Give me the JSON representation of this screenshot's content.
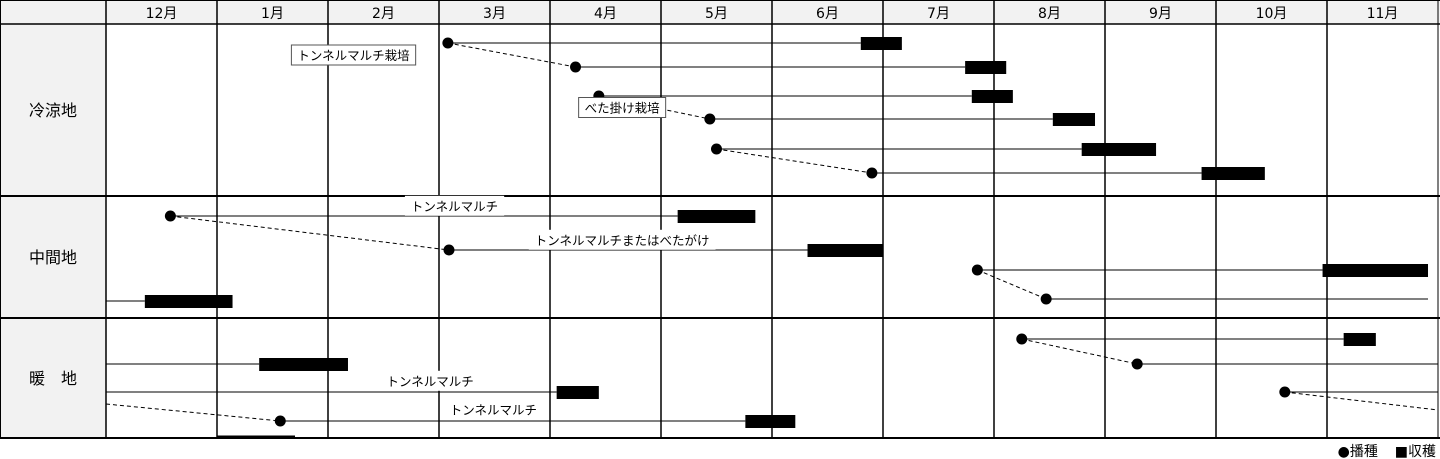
{
  "months": [
    "12月",
    "1月",
    "2月",
    "3月",
    "4月",
    "5月",
    "6月",
    "7月",
    "8月",
    "9月",
    "10月",
    "11月"
  ],
  "regions": [
    {
      "name": "冷涼地"
    },
    {
      "name": "中間地"
    },
    {
      "name": "暖　地"
    }
  ],
  "labels": [
    {
      "text": "トンネルマルチ栽培",
      "boxed": true,
      "region": 0,
      "month_center": 2.23,
      "lane": 0.5
    },
    {
      "text": "べた掛け栽培",
      "boxed": true,
      "region": 0,
      "month_center": 4.65,
      "lane": 2.5
    },
    {
      "text": "トンネルマルチ",
      "region": 1,
      "month_center": 3.14,
      "lane": -0.3
    },
    {
      "text": "トンネルマルチまたはべたがけ",
      "region": 1,
      "month_center": 4.65,
      "lane": 0.7
    },
    {
      "text": "トンネルマルチ",
      "region": 2,
      "month_center": 2.92,
      "lane": 1.6
    },
    {
      "text": "トンネルマルチ",
      "region": 2,
      "month_center": 3.49,
      "lane": 2.6
    }
  ],
  "schedules": [
    {
      "region": 0,
      "lane": 0,
      "sow": 3.08,
      "harvest": [
        6.8,
        7.17
      ],
      "link_next": true
    },
    {
      "region": 0,
      "lane": 1,
      "sow": 4.23,
      "harvest": [
        7.74,
        8.11
      ]
    },
    {
      "region": 0,
      "lane": 2,
      "sow": 4.44,
      "harvest": [
        7.8,
        8.17
      ],
      "link_next": true
    },
    {
      "region": 0,
      "lane": 3,
      "sow": 5.44,
      "harvest": [
        8.53,
        8.91
      ]
    },
    {
      "region": 0,
      "lane": 4,
      "sow": 5.5,
      "harvest": [
        8.79,
        9.46
      ],
      "link_next": true
    },
    {
      "region": 0,
      "lane": 5,
      "sow": 6.9,
      "harvest": [
        9.87,
        10.44
      ]
    },
    {
      "region": 1,
      "lane": 0,
      "sow": 0.58,
      "harvest": [
        5.15,
        5.85
      ],
      "link_next": true
    },
    {
      "region": 1,
      "lane": 1,
      "sow": 3.09,
      "harvest": [
        6.32,
        7.0
      ]
    },
    {
      "region": 1,
      "lane": 2,
      "sow": 7.85,
      "harvest": [
        10.96,
        11.91
      ],
      "link_next": true
    },
    {
      "region": 1,
      "lane": 3,
      "sow": 8.47,
      "line_to": 11.91
    },
    {
      "region": 1,
      "lane": 4,
      "line_from": 0,
      "harvest": [
        0.35,
        1.14
      ]
    },
    {
      "region": 2,
      "lane": 0,
      "sow": 8.25,
      "harvest": [
        11.15,
        11.44
      ],
      "link_next": true
    },
    {
      "region": 2,
      "lane": 1,
      "sow": 9.29,
      "line_to": 12
    },
    {
      "region": 2,
      "lane": 1,
      "line_from": 0,
      "harvest": [
        1.38,
        2.18
      ]
    },
    {
      "region": 2,
      "lane": 2,
      "line_from": 0,
      "harvest": [
        4.06,
        4.44
      ]
    },
    {
      "region": 2,
      "lane": 2,
      "sow": 10.62,
      "line_to": 12,
      "dash_to": 12
    },
    {
      "region": 2,
      "lane": 3,
      "dash_from": 0,
      "sow": 1.57,
      "harvest": [
        5.76,
        6.21
      ]
    }
  ],
  "legend": {
    "sow": "●播種",
    "harvest": "■収穫"
  },
  "colors": {
    "grid": "#000000",
    "header_bg": "#f2f2f2",
    "mark": "#000000"
  }
}
